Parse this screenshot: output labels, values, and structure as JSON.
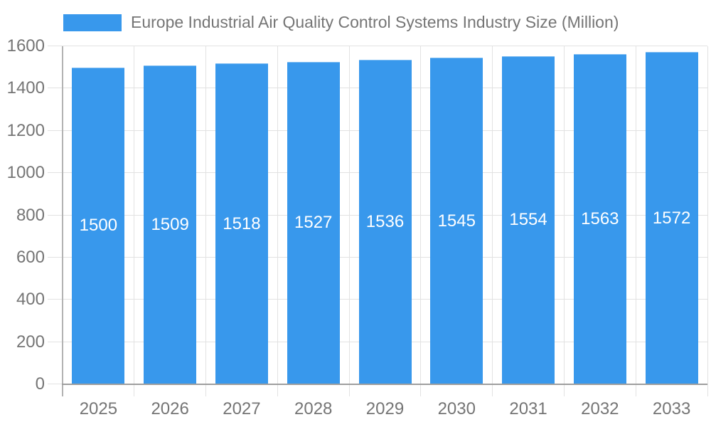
{
  "legend": {
    "label": "Europe Industrial Air Quality Control Systems Industry Size (Million)"
  },
  "chart_data": {
    "type": "bar",
    "title": "Europe Industrial Air Quality Control Systems Industry Size (Million)",
    "categories": [
      "2025",
      "2026",
      "2027",
      "2028",
      "2029",
      "2030",
      "2031",
      "2032",
      "2033"
    ],
    "series": [
      {
        "name": "Europe Industrial Air Quality Control Systems Industry Size (Million)",
        "values": [
          1500,
          1509,
          1518,
          1527,
          1536,
          1545,
          1554,
          1563,
          1572
        ]
      }
    ],
    "data_labels": [
      "1500",
      "1509",
      "1518",
      "1527",
      "1536",
      "1545",
      "1554",
      "1563",
      "1572"
    ],
    "xlabel": "",
    "ylabel": "",
    "ylim": [
      0,
      1600
    ],
    "y_ticks": [
      0,
      200,
      400,
      600,
      800,
      1000,
      1200,
      1400,
      1600
    ],
    "grid": true,
    "legend_position": "top-left",
    "bar_color": "#3898EC",
    "grid_color": "#e2e2e2",
    "y_axis_line_color": "#b3b3b3",
    "x_axis_line_color": "#9e9e9e",
    "axis_text_color": "#757575",
    "bar_label_color": "#ffffff",
    "background_color": "#ffffff"
  }
}
